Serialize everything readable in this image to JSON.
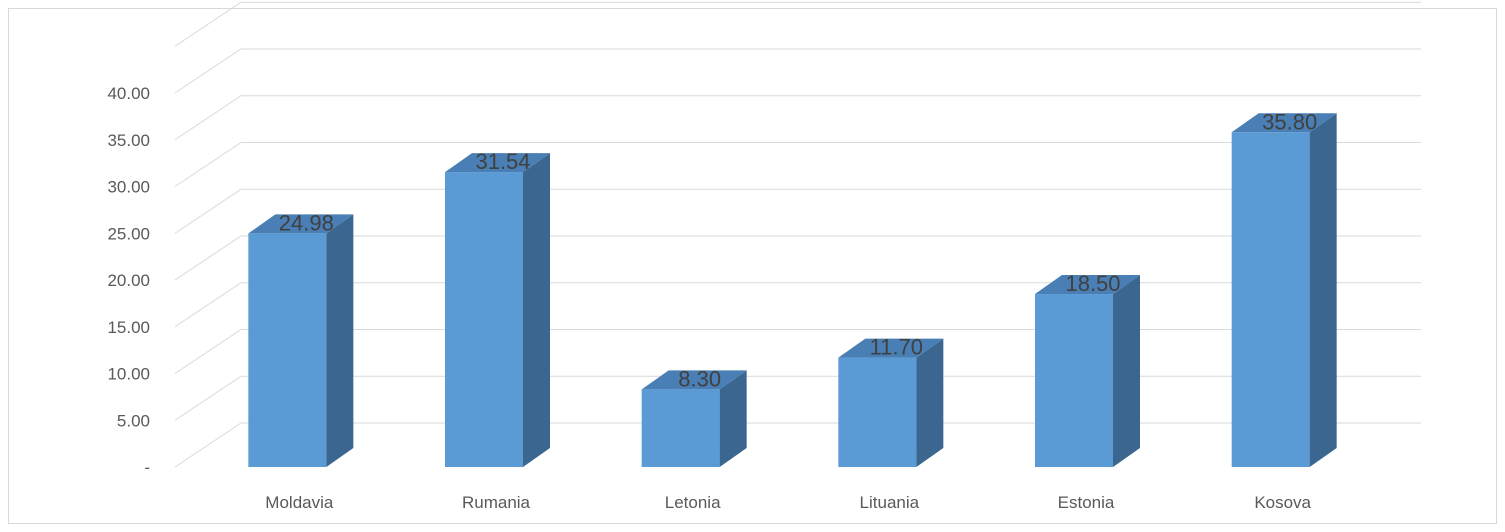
{
  "chart_data": {
    "type": "bar",
    "style": "3d-column",
    "categories": [
      "Moldavia",
      "Rumania",
      "Letonia",
      "Lituania",
      "Estonia",
      "Kosova"
    ],
    "values": [
      24.98,
      31.54,
      8.3,
      11.7,
      18.5,
      35.8
    ],
    "value_labels": [
      "24.98",
      "31.54",
      "8.30",
      "11.70",
      "18.50",
      "35.80"
    ],
    "y_ticks": [
      "-",
      "5.00",
      "10.00",
      "15.00",
      "20.00",
      "25.00",
      "30.00",
      "35.00",
      "40.00"
    ],
    "ylim": [
      0,
      40
    ],
    "grid": true,
    "legend": "none",
    "colors": {
      "front": "#5b9bd5",
      "side": "#3b6690",
      "top": "#4a7fb5",
      "grid": "#d9d9d9",
      "axis_text": "#595959"
    }
  }
}
